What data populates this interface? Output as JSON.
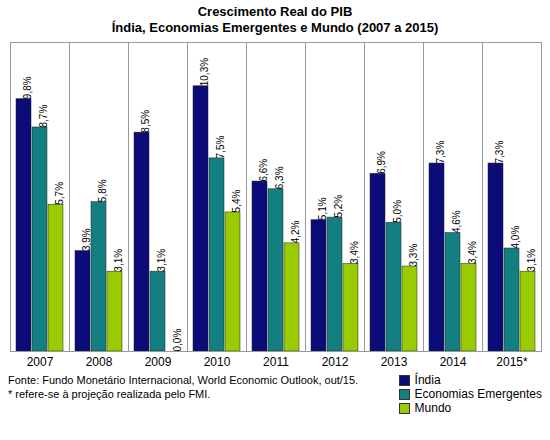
{
  "chart_data": {
    "type": "bar",
    "title": "Crescimento Real do PIB",
    "subtitle": "Índia, Economias Emergentes e Mundo (2007 a 2015)",
    "notes": [
      "Fonte: Fundo Monetário Internacional, World Economic Outlook, out/15.",
      "* refere-se à projeção realizada pelo FMI."
    ],
    "categories": [
      "2007",
      "2008",
      "2009",
      "2010",
      "2011",
      "2012",
      "2013",
      "2014",
      "2015*"
    ],
    "series": [
      {
        "name": "Índia",
        "color": "#0b0b7a",
        "values": [
          9.8,
          3.9,
          8.5,
          10.3,
          6.6,
          5.1,
          6.9,
          7.3,
          7.3
        ],
        "value_labels": [
          "9,8%",
          "3,9%",
          "8,5%",
          "10,3%",
          "6,6%",
          "5,1%",
          "6,9%",
          "7,3%",
          "7,3%"
        ]
      },
      {
        "name": "Economias Emergentes",
        "color": "#137f80",
        "values": [
          8.7,
          5.8,
          3.1,
          7.5,
          6.3,
          5.2,
          5.0,
          4.6,
          4.0
        ],
        "value_labels": [
          "8,7%",
          "5,8%",
          "3,1%",
          "7,5%",
          "6,3%",
          "5,2%",
          "5,0%",
          "4,6%",
          "4,0%"
        ]
      },
      {
        "name": "Mundo",
        "color": "#99cc00",
        "values": [
          5.7,
          3.1,
          0.0,
          5.4,
          4.2,
          3.4,
          3.3,
          3.4,
          3.1
        ],
        "value_labels": [
          "5,7%",
          "3,1%",
          "0,0%",
          "5,4%",
          "4,2%",
          "3,4%",
          "3,3%",
          "3,4%",
          "3,1%"
        ]
      }
    ],
    "ylim": [
      0,
      12
    ],
    "grid": false,
    "data_labels": true,
    "tick_labels": "x",
    "legend": "bottom-right"
  }
}
